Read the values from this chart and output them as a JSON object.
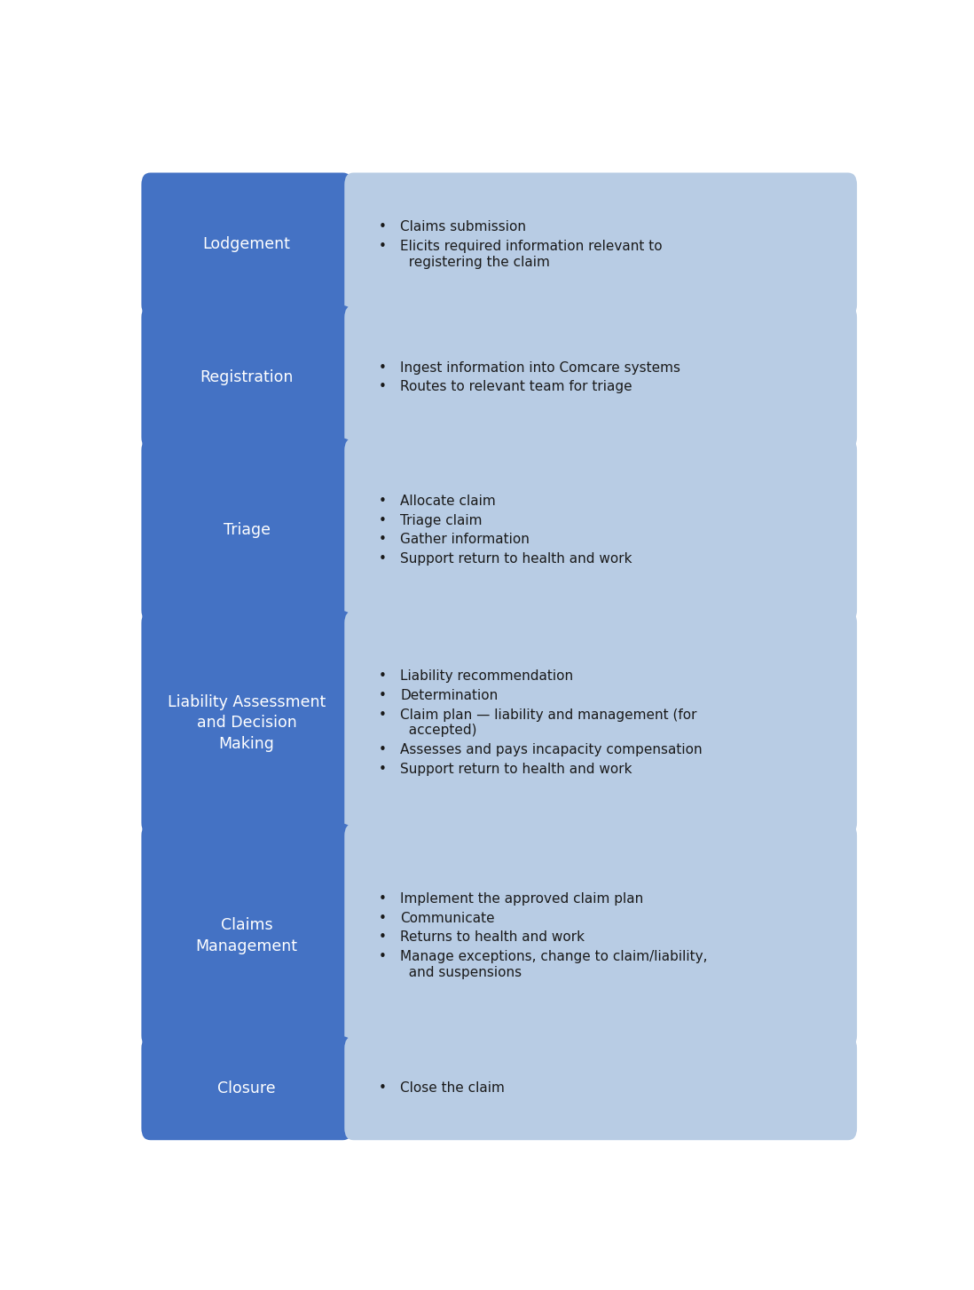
{
  "phases": [
    {
      "title": "Lodgement",
      "bullets": [
        "Claims submission",
        "Elicits required information relevant to\n  registering the claim"
      ]
    },
    {
      "title": "Registration",
      "bullets": [
        "Ingest information into Comcare systems",
        "Routes to relevant team for triage"
      ]
    },
    {
      "title": "Triage",
      "bullets": [
        "Allocate claim",
        "Triage claim",
        "Gather information",
        "Support return to health and work"
      ]
    },
    {
      "title": "Liability Assessment\nand Decision\nMaking",
      "bullets": [
        "Liability recommendation",
        "Determination",
        "Claim plan — liability and management (for\n  accepted)",
        "Assesses and pays incapacity compensation",
        "Support return to health and work"
      ]
    },
    {
      "title": "Claims\nManagement",
      "bullets": [
        "Implement the approved claim plan",
        "Communicate",
        "Returns to health and work",
        "Manage exceptions, change to claim/liability,\n  and suspensions"
      ]
    },
    {
      "title": "Closure",
      "bullets": [
        "Close the claim"
      ]
    }
  ],
  "left_box_color": "#4472C4",
  "right_box_color": "#B8CCE4",
  "title_text_color": "#FFFFFF",
  "bullet_text_color": "#1a1a1a",
  "background_color": "#FFFFFF",
  "title_fontsize": 12.5,
  "bullet_fontsize": 11.0,
  "row_weights": [
    3,
    3,
    4,
    5,
    5,
    2
  ]
}
